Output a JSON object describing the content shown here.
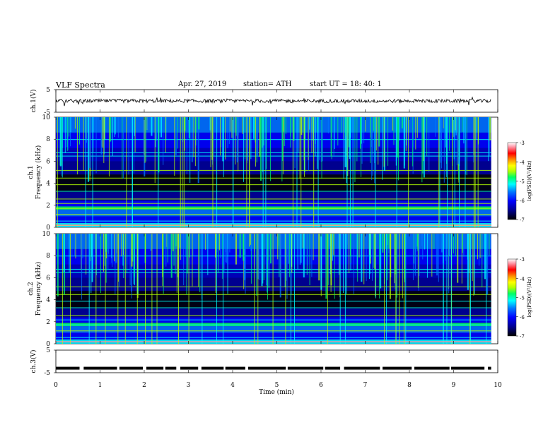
{
  "header": {
    "title": "VLF  Spectra",
    "date": "Apr. 27, 2019",
    "station": "station= ATH",
    "start": "start  UT  =   18: 40: 1"
  },
  "colors": {
    "colormap": [
      "#000000",
      "#00008f",
      "#0000ff",
      "#0078ff",
      "#00ffff",
      "#00ff64",
      "#b4ff00",
      "#ffff00",
      "#ff8c00",
      "#ff0000",
      "#ff8fa0",
      "#ffffff"
    ]
  },
  "chart_data": [
    {
      "type": "line",
      "panel": "ch1",
      "ylabel": "ch.1(V)",
      "yticks": [
        "5",
        "-5"
      ],
      "ylim": [
        -5,
        5
      ],
      "xlim": [
        0,
        10
      ],
      "description_values": "noise trace centered near 0 V, amplitude about ±1 V, spikes to about ±2 V",
      "x": [
        0,
        9.85
      ],
      "y": [
        0,
        0
      ]
    },
    {
      "type": "heatmap",
      "panel": "ch1-spectrogram",
      "ylabel_channel": "ch.1",
      "ylabel": "Frequency  (kHz)",
      "yticks": [
        "10",
        "8",
        "6",
        "4",
        "2",
        "0"
      ],
      "ylim": [
        0,
        10
      ],
      "xlim": [
        0,
        9.85
      ],
      "colorbar": {
        "label": "log(PSD)(V²/Hz)",
        "ticks": [
          "-3",
          "-4",
          "-5",
          "-6",
          "-7"
        ],
        "range": [
          -7,
          -3
        ]
      }
    },
    {
      "type": "heatmap",
      "panel": "ch2-spectrogram",
      "ylabel_channel": "ch.2",
      "ylabel": "Frequency  (kHz)",
      "yticks": [
        "10",
        "8",
        "6",
        "4",
        "2",
        "0"
      ],
      "ylim": [
        0,
        10
      ],
      "xlim": [
        0,
        9.85
      ],
      "colorbar": {
        "label": "log(PSD)(V²/Hz)",
        "ticks": [
          "-3",
          "-4",
          "-5",
          "-6",
          "-7"
        ],
        "range": [
          -7,
          -3
        ]
      }
    },
    {
      "type": "line",
      "panel": "ch3",
      "ylabel": "ch.3(V)",
      "yticks": [
        "5",
        "-5"
      ],
      "ylim": [
        -5,
        5
      ],
      "xlim": [
        0,
        10
      ],
      "x": [
        0,
        9.85
      ],
      "y": [
        -3,
        -3
      ]
    }
  ],
  "xaxis": {
    "label": "Time  (min)",
    "ticks": [
      "0",
      "1",
      "2",
      "3",
      "4",
      "5",
      "6",
      "7",
      "8",
      "9",
      "10"
    ],
    "range": [
      0,
      10
    ]
  }
}
